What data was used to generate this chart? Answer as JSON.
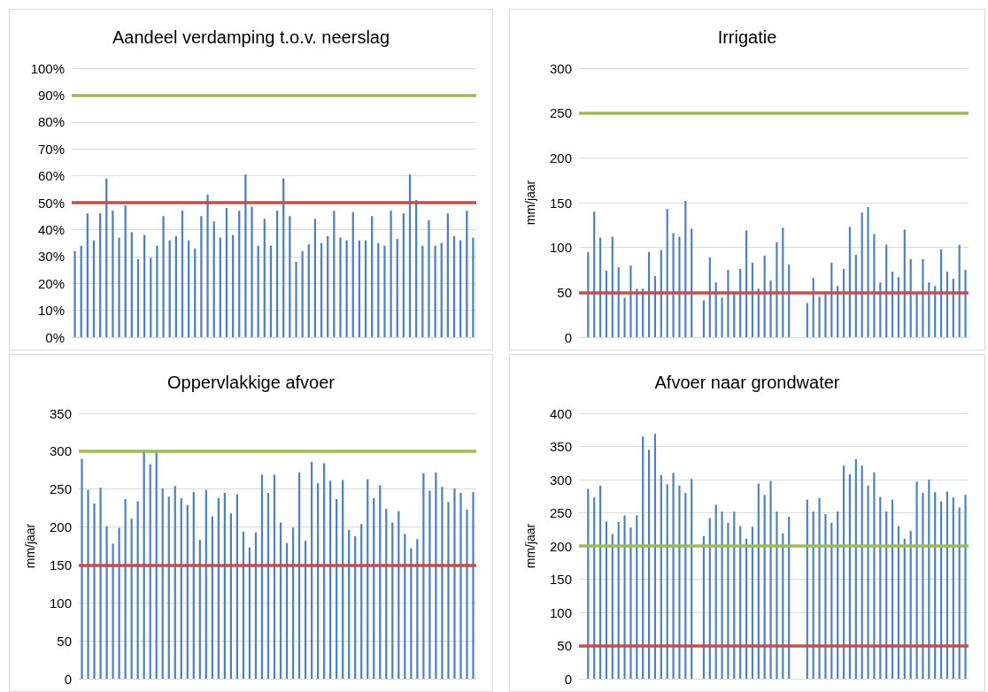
{
  "chart_data": [
    {
      "type": "bar",
      "title": "Aandeel verdamping t.o.v. neerslag",
      "categories": [
        null,
        null,
        null,
        null,
        null,
        null,
        null,
        null,
        null,
        null,
        null,
        null,
        null,
        null,
        null,
        null,
        null,
        null,
        null,
        null,
        null,
        null,
        null,
        null,
        null,
        null,
        null,
        null,
        null,
        null,
        null,
        null,
        null,
        null,
        null,
        null,
        null,
        null,
        null,
        null,
        null,
        null,
        null,
        null,
        null,
        null,
        null,
        null,
        null,
        null,
        null,
        null,
        null,
        null,
        null,
        null,
        null,
        null,
        null,
        null,
        null,
        null,
        null,
        null
      ],
      "series": [
        {
          "color": "#4f81bd",
          "values": [
            32,
            34,
            46,
            36,
            46,
            59,
            47,
            37,
            49,
            39,
            29,
            38,
            29.5,
            34,
            45,
            36,
            37.5,
            47,
            36,
            33,
            45,
            53,
            43,
            37,
            48,
            38,
            47,
            60.5,
            48.5,
            34,
            44,
            34,
            47,
            59,
            45,
            28,
            32,
            34.5,
            44,
            35,
            37.5,
            47,
            37,
            36,
            46.5,
            36,
            36,
            45,
            35,
            34,
            47,
            36.5,
            46,
            60.5,
            51,
            34,
            43.5,
            34,
            35,
            46,
            37.5,
            36,
            47,
            37
          ]
        }
      ],
      "ylim": [
        0,
        100
      ],
      "yticks": [
        {
          "value": 0,
          "label": "0%"
        },
        {
          "value": 10,
          "label": "10%"
        },
        {
          "value": 20,
          "label": "20%"
        },
        {
          "value": 30,
          "label": "30%"
        },
        {
          "value": 40,
          "label": "40%"
        },
        {
          "value": 50,
          "label": "50%"
        },
        {
          "value": 60,
          "label": "60%"
        },
        {
          "value": 70,
          "label": "70%"
        },
        {
          "value": 80,
          "label": "80%"
        },
        {
          "value": 90,
          "label": "90%"
        },
        {
          "value": 100,
          "label": "100%"
        }
      ],
      "ref_lines": [
        {
          "axis": "y",
          "value": 90,
          "color": "#9bbb59"
        },
        {
          "axis": "y",
          "value": 50,
          "color": "#c0504d"
        }
      ],
      "grid": "y",
      "tick_labels": "y"
    },
    {
      "type": "bar",
      "title": "Irrigatie",
      "ylabel": "mm/jaar",
      "categories": [
        null,
        null,
        null,
        null,
        null,
        null,
        null,
        null,
        null,
        null,
        null,
        null,
        null,
        null,
        null,
        null,
        null,
        null,
        null,
        null,
        null,
        null,
        null,
        null,
        null,
        null,
        null,
        null,
        null,
        null,
        null,
        null,
        null,
        null,
        null,
        null,
        null,
        null,
        null,
        null,
        null,
        null,
        null,
        null,
        null,
        null,
        null,
        null,
        null,
        null,
        null,
        null,
        null,
        null,
        null,
        null,
        null,
        null,
        null,
        null,
        null,
        null,
        null,
        null
      ],
      "series": [
        {
          "color": "#4f81bd",
          "values": [
            null,
            95,
            140,
            111,
            74,
            112,
            78,
            44,
            80,
            54,
            54,
            95,
            68,
            97,
            143,
            116,
            112,
            152,
            121,
            null,
            41,
            89,
            61,
            44,
            75,
            50,
            76,
            119,
            83,
            54,
            91,
            63,
            106,
            122,
            81,
            null,
            null,
            38,
            66,
            45,
            49,
            83,
            57,
            76,
            123,
            92,
            139,
            145,
            115,
            61,
            103,
            73,
            67,
            120,
            87,
            49,
            87,
            61,
            57,
            98,
            73,
            65,
            103,
            75
          ]
        }
      ],
      "ylim": [
        0,
        300
      ],
      "yticks": [
        0,
        50,
        100,
        150,
        200,
        250,
        300
      ],
      "ref_lines": [
        {
          "axis": "y",
          "value": 250,
          "color": "#9bbb59"
        },
        {
          "axis": "y",
          "value": 50,
          "color": "#c0504d"
        }
      ],
      "grid": "y",
      "tick_labels": "y"
    },
    {
      "type": "bar",
      "title": "Oppervlakkige afvoer",
      "ylabel": "mm/jaar",
      "categories": [
        null,
        null,
        null,
        null,
        null,
        null,
        null,
        null,
        null,
        null,
        null,
        null,
        null,
        null,
        null,
        null,
        null,
        null,
        null,
        null,
        null,
        null,
        null,
        null,
        null,
        null,
        null,
        null,
        null,
        null,
        null,
        null,
        null,
        null,
        null,
        null,
        null,
        null,
        null,
        null,
        null,
        null,
        null,
        null,
        null,
        null,
        null,
        null,
        null,
        null,
        null,
        null,
        null,
        null,
        null,
        null,
        null,
        null,
        null,
        null,
        null,
        null,
        null,
        null
      ],
      "series": [
        {
          "color": "#4f81bd",
          "values": [
            290,
            249,
            231,
            252,
            201,
            178,
            199,
            237,
            211,
            234,
            299,
            283,
            299,
            251,
            240,
            254,
            238,
            229,
            246,
            183,
            249,
            214,
            238,
            245,
            218,
            243,
            194,
            173,
            193,
            269,
            245,
            269,
            206,
            179,
            199,
            272,
            182,
            286,
            258,
            284,
            261,
            237,
            262,
            196,
            188,
            204,
            263,
            238,
            255,
            224,
            206,
            221,
            191,
            172,
            184,
            271,
            248,
            272,
            253,
            233,
            251,
            245,
            223,
            246
          ]
        }
      ],
      "ylim": [
        0,
        350
      ],
      "yticks": [
        0,
        50,
        100,
        150,
        200,
        250,
        300,
        350
      ],
      "ref_lines": [
        {
          "axis": "y",
          "value": 300,
          "color": "#9bbb59"
        },
        {
          "axis": "y",
          "value": 150,
          "color": "#c0504d"
        }
      ],
      "grid": "y",
      "tick_labels": "y"
    },
    {
      "type": "bar",
      "title": "Afvoer naar grondwater",
      "ylabel": "mm/jaar",
      "categories": [
        null,
        null,
        null,
        null,
        null,
        null,
        null,
        null,
        null,
        null,
        null,
        null,
        null,
        null,
        null,
        null,
        null,
        null,
        null,
        null,
        null,
        null,
        null,
        null,
        null,
        null,
        null,
        null,
        null,
        null,
        null,
        null,
        null,
        null,
        null,
        null,
        null,
        null,
        null,
        null,
        null,
        null,
        null,
        null,
        null,
        null,
        null,
        null,
        null,
        null,
        null,
        null,
        null,
        null,
        null,
        null,
        null,
        null,
        null,
        null,
        null,
        null,
        null,
        null
      ],
      "series": [
        {
          "color": "#4f81bd",
          "values": [
            null,
            286,
            273,
            291,
            237,
            218,
            236,
            246,
            228,
            246,
            365,
            345,
            369,
            307,
            293,
            310,
            291,
            280,
            301,
            null,
            215,
            242,
            262,
            252,
            235,
            252,
            230,
            211,
            229,
            294,
            277,
            298,
            252,
            219,
            244,
            null,
            null,
            270,
            252,
            272,
            248,
            235,
            252,
            321,
            308,
            331,
            321,
            291,
            311,
            274,
            252,
            270,
            230,
            211,
            223,
            297,
            280,
            300,
            281,
            267,
            282,
            273,
            258,
            277
          ]
        }
      ],
      "ylim": [
        0,
        400
      ],
      "yticks": [
        0,
        50,
        100,
        150,
        200,
        250,
        300,
        350,
        400
      ],
      "ref_lines": [
        {
          "axis": "y",
          "value": 200,
          "color": "#9bbb59"
        },
        {
          "axis": "y",
          "value": 50,
          "color": "#c0504d"
        }
      ],
      "grid": "y",
      "tick_labels": "y"
    }
  ]
}
